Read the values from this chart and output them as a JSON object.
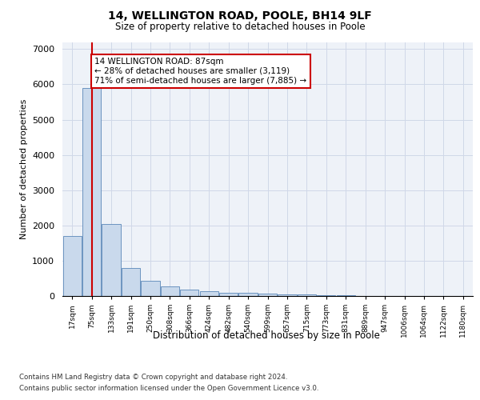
{
  "title1": "14, WELLINGTON ROAD, POOLE, BH14 9LF",
  "title2": "Size of property relative to detached houses in Poole",
  "xlabel": "Distribution of detached houses by size in Poole",
  "ylabel": "Number of detached properties",
  "categories": [
    "17sqm",
    "75sqm",
    "133sqm",
    "191sqm",
    "250sqm",
    "308sqm",
    "366sqm",
    "424sqm",
    "482sqm",
    "540sqm",
    "599sqm",
    "657sqm",
    "715sqm",
    "773sqm",
    "831sqm",
    "889sqm",
    "947sqm",
    "1006sqm",
    "1064sqm",
    "1122sqm",
    "1180sqm"
  ],
  "values": [
    1700,
    5900,
    2050,
    800,
    430,
    270,
    180,
    130,
    100,
    85,
    70,
    50,
    40,
    20,
    15,
    10,
    8,
    5,
    4,
    3,
    2
  ],
  "bar_color": "#c9d9ec",
  "bar_edge_color": "#5a87b8",
  "property_line_x": 1,
  "annotation_title": "14 WELLINGTON ROAD: 87sqm",
  "annotation_line1": "← 28% of detached houses are smaller (3,119)",
  "annotation_line2": "71% of semi-detached houses are larger (7,885) →",
  "annotation_box_color": "#ffffff",
  "annotation_box_edge": "#cc0000",
  "property_line_color": "#cc0000",
  "grid_color": "#d0d8e8",
  "background_color": "#eef2f8",
  "ylim": [
    0,
    7200
  ],
  "yticks": [
    0,
    1000,
    2000,
    3000,
    4000,
    5000,
    6000,
    7000
  ],
  "footer1": "Contains HM Land Registry data © Crown copyright and database right 2024.",
  "footer2": "Contains public sector information licensed under the Open Government Licence v3.0."
}
